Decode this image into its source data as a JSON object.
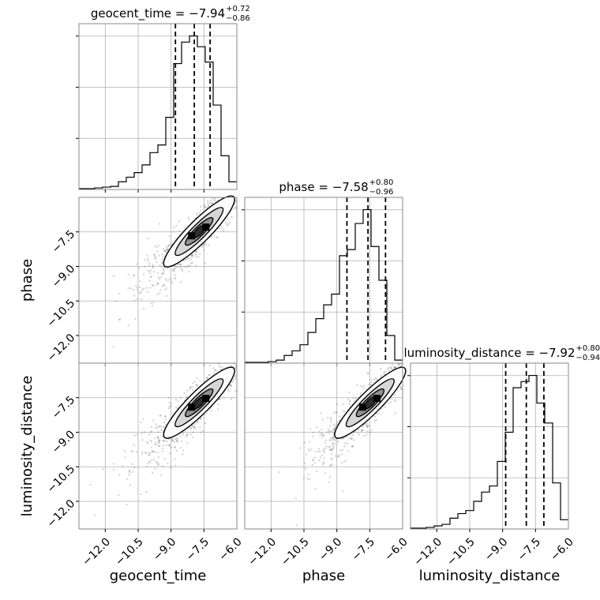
{
  "chart_data": {
    "type": "corner",
    "parameters": [
      "geocent_time",
      "phase",
      "luminosity_distance"
    ],
    "axis_labels": {
      "geocent_time": "geocent_time",
      "phase": "phase",
      "luminosity_distance": "luminosity_distance"
    },
    "axis_range": [
      -13.2,
      -6.0
    ],
    "ticks": [
      -12.0,
      -10.5,
      -9.0,
      -7.5,
      -6.0
    ],
    "tick_labels": [
      "−12.0",
      "−10.5",
      "−9.0",
      "−7.5",
      "−6.0"
    ],
    "grid": true,
    "titles": [
      {
        "param": "geocent_time",
        "label": "geocent_time",
        "median": "−7.94",
        "plus": "+0.72",
        "minus": "−0.86"
      },
      {
        "param": "phase",
        "label": "phase",
        "median": "−7.58",
        "plus": "+0.80",
        "minus": "−0.96"
      },
      {
        "param": "luminosity_distance",
        "label": "luminosity_distance",
        "median": "−7.92",
        "plus": "+0.80",
        "minus": "−0.94"
      }
    ],
    "quantile_lines": {
      "geocent_time": [
        -8.8,
        -7.94,
        -7.22
      ],
      "phase": [
        -8.54,
        -7.58,
        -6.78
      ],
      "luminosity_distance": [
        -8.86,
        -7.92,
        -7.12
      ]
    },
    "histograms": {
      "bin_edges": [
        -13.2,
        -12.84,
        -12.48,
        -12.12,
        -11.76,
        -11.4,
        -11.04,
        -10.68,
        -10.32,
        -9.96,
        -9.6,
        -9.24,
        -8.88,
        -8.52,
        -8.16,
        -7.8,
        -7.44,
        -7.08,
        -6.72,
        -6.36,
        -6.0
      ],
      "geocent_time": [
        0.005,
        0.005,
        0.01,
        0.015,
        0.02,
        0.05,
        0.08,
        0.11,
        0.16,
        0.24,
        0.29,
        0.47,
        0.82,
        0.96,
        1.0,
        0.93,
        0.83,
        0.55,
        0.22,
        0.05
      ],
      "phase": [
        0.005,
        0.005,
        0.005,
        0.01,
        0.02,
        0.05,
        0.08,
        0.12,
        0.2,
        0.29,
        0.38,
        0.45,
        0.7,
        0.74,
        0.91,
        1.0,
        0.76,
        0.54,
        0.18,
        0.02
      ],
      "luminosity_distance": [
        0.005,
        0.005,
        0.01,
        0.02,
        0.03,
        0.07,
        0.1,
        0.12,
        0.18,
        0.24,
        0.28,
        0.44,
        0.63,
        0.92,
        0.96,
        1.0,
        0.82,
        0.69,
        0.3,
        0.06
      ]
    },
    "correlation": {
      "centroid": [
        -7.72,
        -7.48,
        -7.72
      ],
      "spread": 0.95,
      "scatter_sd": 0.32
    }
  }
}
